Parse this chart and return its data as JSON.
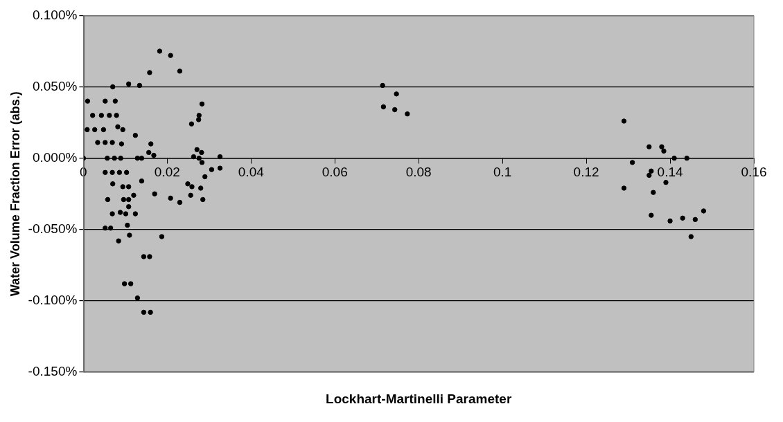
{
  "chart_data": {
    "type": "scatter",
    "xlabel": "Lockhart-Martinelli Parameter",
    "ylabel": "Water Volume Fraction Error (abs.)",
    "xlim": [
      0,
      0.16
    ],
    "xticks": [
      0,
      0.02,
      0.04,
      0.06,
      0.08,
      0.1,
      0.12,
      0.14,
      0.16
    ],
    "ylim": [
      -0.15,
      0.1
    ],
    "yticks": [
      {
        "value": -0.15,
        "label": "-0.150%"
      },
      {
        "value": -0.1,
        "label": "-0.100%"
      },
      {
        "value": -0.05,
        "label": "-0.050%"
      },
      {
        "value": 0,
        "label": "0.000%"
      },
      {
        "value": 0.05,
        "label": "0.050%"
      },
      {
        "value": 0.1,
        "label": "0.100%"
      }
    ],
    "grid": "y",
    "legend": false,
    "marker": "circle",
    "series": [
      {
        "color": "#000000",
        "x": [
          0,
          0.001,
          0.0052,
          0.0076,
          0.007,
          0.0108,
          0.0134,
          0.0158,
          0.023,
          0.0009,
          0.0027,
          0.0048,
          0.0082,
          0.0094,
          0.0022,
          0.0043,
          0.0062,
          0.0079,
          0.0124,
          0.0034,
          0.0052,
          0.0069,
          0.0091,
          0.0057,
          0.0074,
          0.0089,
          0.0129,
          0.0139,
          0.0156,
          0.0161,
          0.0168,
          0.0258,
          0.0275,
          0.0276,
          0.0283,
          0.0263,
          0.0271,
          0.0282,
          0.0276,
          0.0326,
          0.0283,
          0.0052,
          0.0069,
          0.0086,
          0.0103,
          0.029,
          0.0306,
          0.0326,
          0.0139,
          0.007,
          0.0094,
          0.0108,
          0.0249,
          0.0259,
          0.028,
          0.017,
          0.0208,
          0.023,
          0.0256,
          0.0285,
          0.0058,
          0.0096,
          0.0108,
          0.012,
          0.0108,
          0.0069,
          0.0088,
          0.0101,
          0.0124,
          0.0052,
          0.0065,
          0.0105,
          0.011,
          0.0084,
          0.0187,
          0.0144,
          0.0158,
          0.0098,
          0.0113,
          0.0129,
          0.0144,
          0.016,
          0.0182,
          0.0208,
          0.0714,
          0.0747,
          0.0716,
          0.0743,
          0.0773,
          0.129,
          0.129,
          0.131,
          0.135,
          0.135,
          0.1355,
          0.136,
          0.1355,
          0.138,
          0.1385,
          0.139,
          0.14,
          0.141,
          0.144,
          0.143,
          0.145,
          0.146,
          0.148
        ],
        "values": [
          0,
          0.04,
          0.04,
          0.04,
          0.05,
          0.052,
          0.051,
          0.06,
          0.061,
          0.02,
          0.02,
          0.02,
          0.022,
          0.02,
          0.03,
          0.03,
          0.03,
          0.03,
          0.016,
          0.011,
          0.011,
          0.011,
          0.01,
          0,
          0,
          0,
          0,
          0,
          0.004,
          0.01,
          0.002,
          0.024,
          0.027,
          0.03,
          0.038,
          0.001,
          0.006,
          0.004,
          0,
          0.001,
          -0.003,
          -0.01,
          -0.01,
          -0.01,
          -0.01,
          -0.013,
          -0.008,
          -0.007,
          -0.016,
          -0.018,
          -0.02,
          -0.02,
          -0.018,
          -0.02,
          -0.021,
          -0.025,
          -0.028,
          -0.031,
          -0.026,
          -0.029,
          -0.029,
          -0.029,
          -0.029,
          -0.026,
          -0.034,
          -0.039,
          -0.038,
          -0.039,
          -0.039,
          -0.049,
          -0.049,
          -0.047,
          -0.054,
          -0.058,
          -0.055,
          -0.069,
          -0.069,
          -0.088,
          -0.088,
          -0.098,
          -0.108,
          -0.108,
          0.075,
          0.072,
          0.051,
          0.045,
          0.036,
          0.034,
          0.031,
          0.026,
          -0.021,
          -0.003,
          0.008,
          -0.012,
          -0.009,
          -0.024,
          -0.04,
          0.008,
          0.005,
          -0.017,
          -0.044,
          0,
          0,
          -0.042,
          -0.055,
          -0.043,
          -0.037
        ]
      }
    ]
  }
}
